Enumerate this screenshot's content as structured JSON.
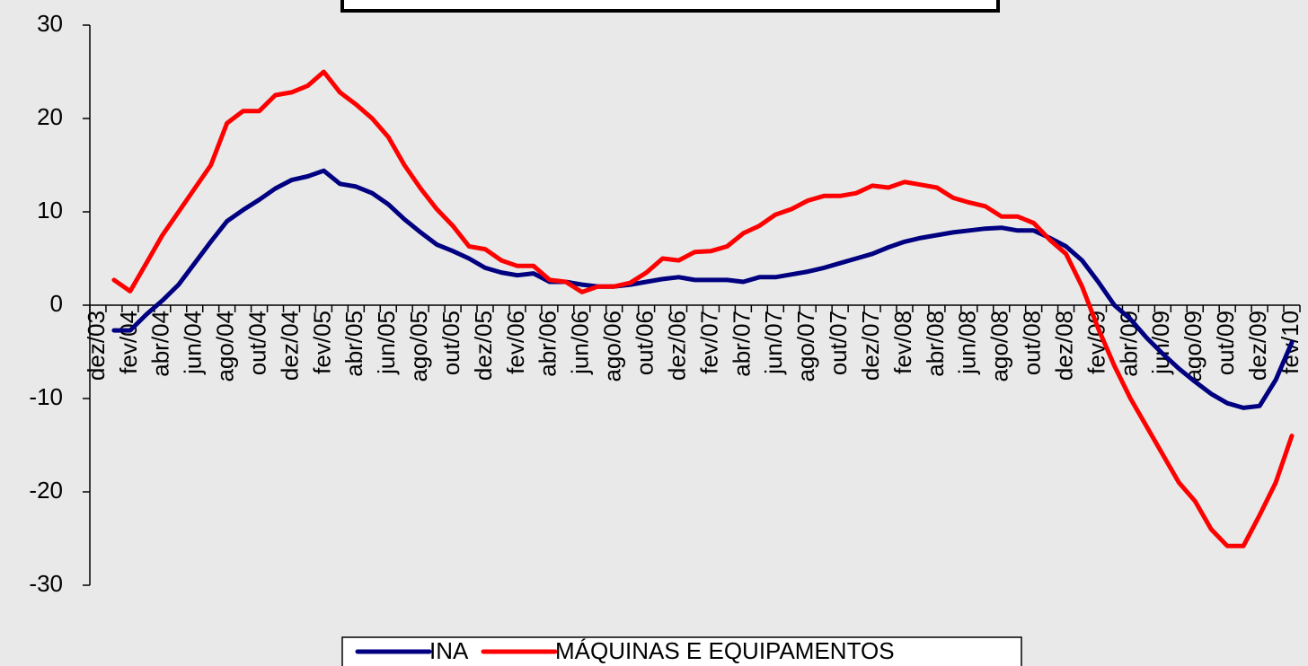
{
  "chart_data": {
    "type": "line",
    "categories": [
      "dez/03",
      null,
      "fev/04",
      null,
      "abr/04",
      null,
      "jun/04",
      null,
      "ago/04",
      null,
      "out/04",
      null,
      "dez/04",
      null,
      "fev/05",
      null,
      "abr/05",
      null,
      "jun/05",
      null,
      "ago/05",
      null,
      "out/05",
      null,
      "dez/05",
      null,
      "fev/06",
      null,
      "abr/06",
      null,
      "jun/06",
      null,
      "ago/06",
      null,
      "out/06",
      null,
      "dez/06",
      null,
      "fev/07",
      null,
      "abr/07",
      null,
      "jun/07",
      null,
      "ago/07",
      null,
      "out/07",
      null,
      "dez/07",
      null,
      "fev/08",
      null,
      "abr/08",
      null,
      "jun/08",
      null,
      "ago/08",
      null,
      "out/08",
      null,
      "dez/08",
      null,
      "fev/09",
      null,
      "abr/09",
      null,
      "jun/09",
      null,
      "ago/09",
      null,
      "out/09",
      null,
      "dez/09",
      null,
      "fev/10"
    ],
    "series": [
      {
        "name": "INA",
        "color": "#000080",
        "values": [
          null,
          -2.7,
          -2.7,
          -1,
          0.5,
          2.2,
          4.5,
          6.8,
          9,
          10.2,
          11.3,
          12.5,
          13.4,
          13.8,
          14.4,
          13,
          12.7,
          12,
          10.8,
          9.2,
          7.8,
          6.5,
          5.8,
          5,
          4,
          3.5,
          3.2,
          3.4,
          2.5,
          2.5,
          2.2,
          2,
          2,
          2.2,
          2.5,
          2.8,
          3,
          2.7,
          2.7,
          2.7,
          2.5,
          3,
          3,
          3.3,
          3.6,
          4,
          4.5,
          5,
          5.5,
          6.2,
          6.8,
          7.2,
          7.5,
          7.8,
          8,
          8.2,
          8.3,
          8,
          8,
          7.2,
          6.3,
          4.8,
          2.5,
          0,
          -1.5,
          -3.5,
          -5.2,
          -6.8,
          -8.2,
          -9.5,
          -10.5,
          -11,
          -10.8,
          -8,
          -4
        ]
      },
      {
        "name": "MÁQUINAS E EQUIPAMENTOS",
        "color": "#ff0000",
        "values": [
          null,
          2.7,
          1.5,
          4.5,
          7.5,
          10,
          12.5,
          15,
          19.5,
          20.8,
          20.8,
          22.5,
          22.8,
          23.5,
          25,
          22.8,
          21.5,
          20,
          18,
          15,
          12.5,
          10.3,
          8.5,
          6.3,
          6,
          4.8,
          4.2,
          4.2,
          2.7,
          2.5,
          1.4,
          2,
          2,
          2.4,
          3.5,
          5,
          4.8,
          5.7,
          5.8,
          6.3,
          7.7,
          8.5,
          9.7,
          10.3,
          11.2,
          11.7,
          11.7,
          12,
          12.8,
          12.6,
          13.2,
          12.9,
          12.6,
          11.5,
          11,
          10.6,
          9.5,
          9.5,
          8.8,
          7,
          5.5,
          2,
          -2.5,
          -6.5,
          -10,
          -13,
          -16,
          -19,
          -21,
          -24,
          -25.8,
          -25.8,
          -22.5,
          -19,
          -14
        ]
      }
    ],
    "ylim": [
      -30,
      30
    ],
    "yticks": [
      -30,
      -20,
      -10,
      0,
      10,
      20,
      30
    ]
  }
}
